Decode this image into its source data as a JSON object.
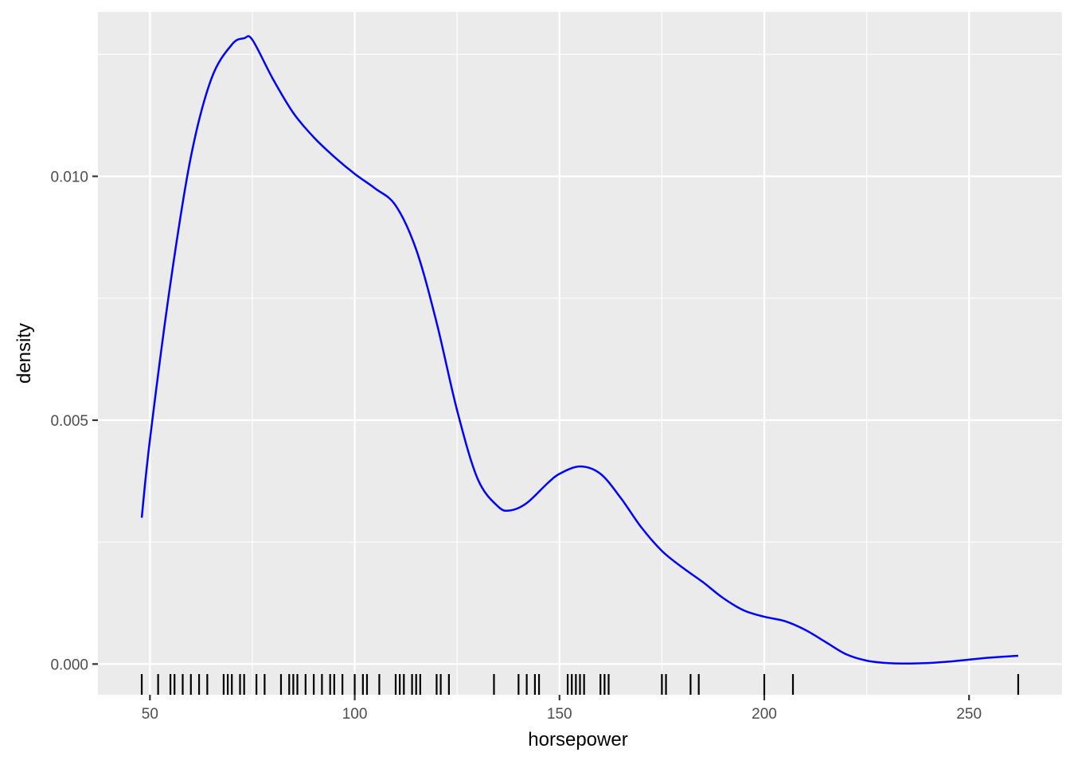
{
  "chart_data": {
    "type": "line",
    "xlabel": "horsepower",
    "ylabel": "density",
    "xlim": [
      37.3,
      272.7
    ],
    "ylim": [
      -0.00063,
      0.01337
    ],
    "x_ticks": [
      50,
      100,
      150,
      200,
      250
    ],
    "x_tick_labels": [
      "50",
      "100",
      "150",
      "200",
      "250"
    ],
    "y_ticks": [
      0.0,
      0.005,
      0.01
    ],
    "y_tick_labels": [
      "0.000",
      "0.005",
      "0.010"
    ],
    "grid": true,
    "legend": "none",
    "line_color": "#0000ff",
    "rug_color": "#000000",
    "panel_background": "#ebebeb",
    "grid_color": "#ffffff",
    "series": [
      {
        "x": [
          48,
          50,
          55,
          60,
          65,
          70,
          73,
          75,
          80,
          85,
          90,
          95,
          100,
          105,
          110,
          115,
          120,
          125,
          130,
          135,
          138,
          142,
          147,
          150,
          155,
          160,
          165,
          170,
          175,
          180,
          185,
          190,
          195,
          200,
          205,
          210,
          215,
          220,
          225,
          230,
          235,
          240,
          245,
          250,
          255,
          262
        ],
        "y": [
          0.003,
          0.0046,
          0.0078,
          0.0104,
          0.012,
          0.0127,
          0.01283,
          0.0128,
          0.012,
          0.0113,
          0.0108,
          0.0104,
          0.01005,
          0.00975,
          0.0094,
          0.0085,
          0.007,
          0.0052,
          0.0038,
          0.00323,
          0.00315,
          0.0033,
          0.0037,
          0.0039,
          0.00405,
          0.0039,
          0.0034,
          0.0028,
          0.00232,
          0.00198,
          0.00168,
          0.00135,
          0.0011,
          0.00097,
          0.00088,
          0.0007,
          0.00045,
          0.0002,
          7e-05,
          2e-05,
          1e-05,
          2e-05,
          5e-05,
          9e-05,
          0.00013,
          0.00017
        ]
      }
    ],
    "rug": [
      48,
      52,
      55,
      56,
      58,
      60,
      62,
      64,
      68,
      69,
      70,
      72,
      73,
      76,
      78,
      82,
      84,
      85,
      86,
      88,
      90,
      92,
      94,
      95,
      97,
      100,
      102,
      103,
      106,
      110,
      111,
      112,
      114,
      115,
      116,
      120,
      121,
      123,
      134,
      140,
      142,
      144,
      145,
      152,
      153,
      154,
      155,
      156,
      160,
      161,
      162,
      175,
      176,
      182,
      184,
      200,
      207,
      262
    ]
  }
}
